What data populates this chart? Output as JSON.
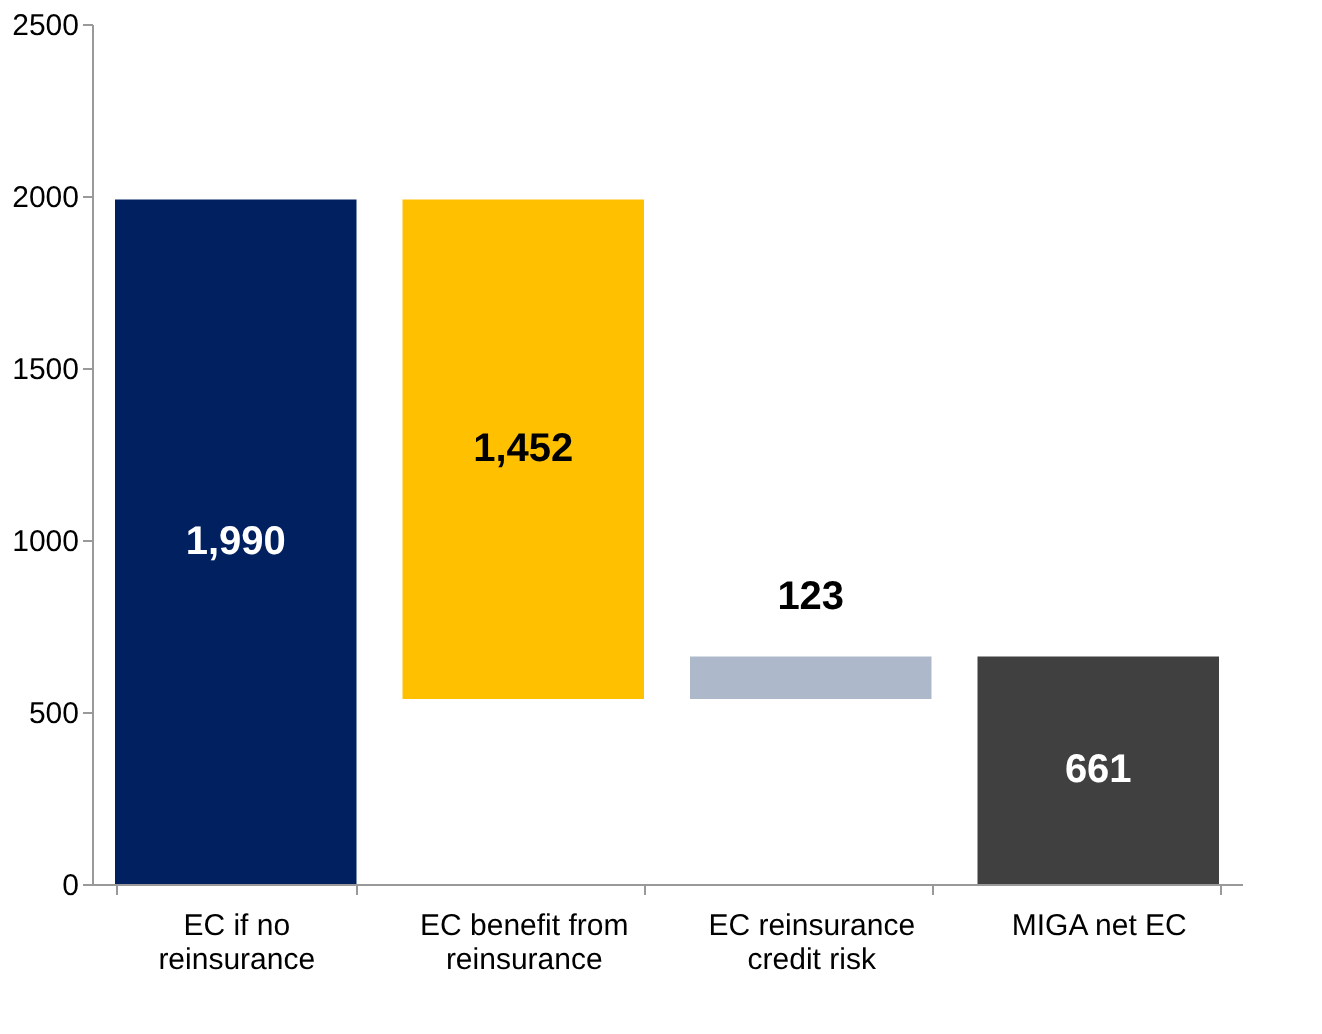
{
  "chart_data": {
    "type": "bar",
    "categories": [
      "EC if no reinsurance",
      "EC benefit from reinsurance",
      "EC reinsurance credit risk",
      "MIGA net EC"
    ],
    "values": [
      1990,
      1452,
      123,
      661
    ],
    "base": [
      0,
      538,
      538,
      0
    ],
    "colors": [
      "#002060",
      "#ffc000",
      "#adb9ca",
      "#404040"
    ],
    "value_labels": [
      "1,990",
      "1,452",
      "123",
      "661"
    ],
    "ylim": [
      0,
      2500
    ],
    "yticks": [
      0,
      500,
      1000,
      1500,
      2000,
      2500
    ],
    "grid": false
  }
}
